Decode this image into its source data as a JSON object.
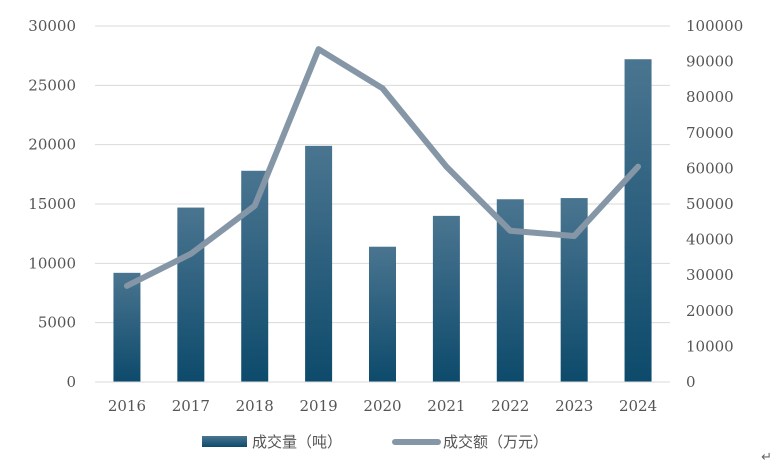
{
  "chart_data": {
    "type": "bar",
    "categories": [
      "2016",
      "2017",
      "2018",
      "2019",
      "2020",
      "2021",
      "2022",
      "2023",
      "2024"
    ],
    "series": [
      {
        "name": "成交量（吨）",
        "type": "bar",
        "axis": "left",
        "values": [
          9200,
          14700,
          17800,
          19900,
          11400,
          14000,
          15400,
          15500,
          27200
        ],
        "color": "#1f5a78"
      },
      {
        "name": "成交额（万元）",
        "type": "line",
        "axis": "right",
        "values": [
          27000,
          36000,
          49500,
          93500,
          82500,
          60500,
          42500,
          41000,
          60500
        ],
        "color": "#8596a6"
      }
    ],
    "y_left": {
      "ylim": [
        0,
        30000
      ],
      "ticks": [
        "0",
        "5000",
        "10000",
        "15000",
        "20000",
        "25000",
        "30000"
      ]
    },
    "y_right": {
      "ylim": [
        0,
        100000
      ],
      "ticks": [
        "0",
        "10000",
        "20000",
        "30000",
        "40000",
        "50000",
        "60000",
        "70000",
        "80000",
        "90000",
        "100000"
      ]
    },
    "grid": true,
    "legend": "bottom"
  },
  "footer_mark": "↵"
}
